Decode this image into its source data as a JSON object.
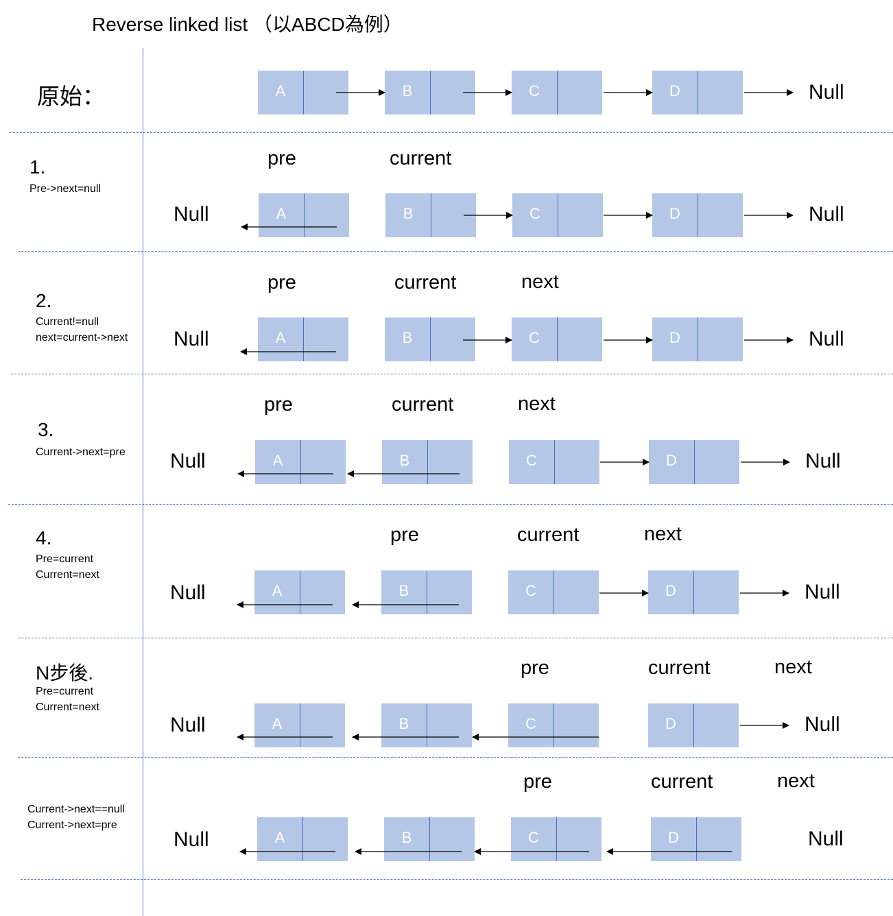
{
  "title": "Reverse linked list （以ABCD為例）",
  "null_text": "Null",
  "pointer_labels": {
    "pre": "pre",
    "current": "current",
    "next": "next"
  },
  "rows": [
    {
      "id": "original",
      "heading": "原始：",
      "notes": [],
      "nodes": [
        "A",
        "B",
        "C",
        "D"
      ]
    },
    {
      "id": "step-1",
      "number": "1.",
      "notes": [
        "Pre->next=null"
      ],
      "nodes": [
        "A",
        "B",
        "C",
        "D"
      ]
    },
    {
      "id": "step-2",
      "number": "2.",
      "notes": [
        "Current!=null",
        "next=current->next"
      ],
      "nodes": [
        "A",
        "B",
        "C",
        "D"
      ]
    },
    {
      "id": "step-3",
      "number": "3.",
      "notes": [
        "Current->next=pre"
      ],
      "nodes": [
        "A",
        "B",
        "C",
        "D"
      ]
    },
    {
      "id": "step-4",
      "number": "4.",
      "notes": [
        "Pre=current",
        "Current=next"
      ],
      "nodes": [
        "A",
        "B",
        "C",
        "D"
      ]
    },
    {
      "id": "step-n",
      "heading": "N步後.",
      "notes": [
        "Pre=current",
        "Current=next"
      ],
      "nodes": [
        "A",
        "B",
        "C",
        "D"
      ]
    },
    {
      "id": "final",
      "notes": [
        "Current->next==null",
        "Current->next=pre"
      ],
      "nodes": [
        "A",
        "B",
        "C",
        "D"
      ]
    }
  ]
}
